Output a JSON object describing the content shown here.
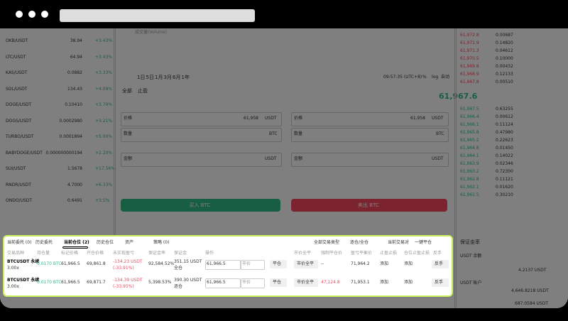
{
  "market_list": [
    {
      "pair": "OKB/USDT",
      "price": "38.94",
      "change": "+3.43%"
    },
    {
      "pair": "LTC/USDT",
      "price": "64.94",
      "change": "+3.43%"
    },
    {
      "pair": "KAS/USDT",
      "price": "0.0882",
      "change": "+3.33%"
    },
    {
      "pair": "SOL/USDT",
      "price": "134.43",
      "change": "+4.09%"
    },
    {
      "pair": "DOGE/USDT",
      "price": "0.10410",
      "change": "+3.79%"
    },
    {
      "pair": "DOGS/USDT",
      "price": "0.0002980",
      "change": "+3.21%"
    },
    {
      "pair": "TURBO/USDT",
      "price": "0.0001894",
      "change": "+5.00%"
    },
    {
      "pair": "BABYDOGE/USDT",
      "price": "0.000000000194",
      "change": "+2.20%"
    },
    {
      "pair": "SUI/USDT",
      "price": "1.5678",
      "change": "+17.56%"
    },
    {
      "pair": "RNDR/USDT",
      "price": "4.7000",
      "change": "+6.33%"
    },
    {
      "pair": "ONDO/USDT",
      "price": "0.6491",
      "change": "+3.5%"
    }
  ],
  "chart": {
    "volume_label": "成交量(Volume)",
    "ranges": [
      "1日",
      "5日",
      "1月",
      "3月",
      "6月",
      "1年"
    ],
    "time": "09:57:35 (UTC+8)",
    "scale": [
      "%",
      "log",
      "自动"
    ]
  },
  "order_form": {
    "tabs": [
      "全部",
      "止盈"
    ],
    "price_label": "价格",
    "price": "61,958",
    "quote": "USDT",
    "amount_label": "数量",
    "base": "BTC",
    "total_label": "金额",
    "buy": "买入 BTC",
    "sell": "卖出 BTC"
  },
  "order_book": {
    "asks": [
      [
        "61,972.8",
        "0.00687"
      ],
      [
        "61,971.9",
        "0.14820"
      ],
      [
        "61,971.3",
        "0.04612"
      ],
      [
        "61,970.5",
        "0.10000"
      ],
      [
        "61,969.8",
        "0.00432"
      ],
      [
        "61,968.9",
        "0.12133"
      ],
      [
        "61,967.8",
        "0.00510"
      ]
    ],
    "last_price": "61,967.6",
    "bids": [
      [
        "61,967.5",
        "0.63255"
      ],
      [
        "61,966.4",
        "0.00612"
      ],
      [
        "61,966.1",
        "0.11124"
      ],
      [
        "61,965.8",
        "0.47980"
      ],
      [
        "61,965.2",
        "0.22623"
      ],
      [
        "61,964.8",
        "0.01450"
      ],
      [
        "61,964.1",
        "0.14022"
      ],
      [
        "61,963.9",
        "0.02346"
      ],
      [
        "61,963.2",
        "0.72300"
      ],
      [
        "61,962.8",
        "0.11121"
      ],
      [
        "61,962.1",
        "0.01620"
      ],
      [
        "61,961.5",
        "0.30210"
      ]
    ]
  },
  "account": {
    "title": "保证金率",
    "usdt_label": "USDT 余额",
    "usdt_balance": "4.2137 USDT",
    "account_label": "USDT 账户",
    "equity": "4,646.8218 USDT",
    "available": "687.0584 USDT"
  },
  "positions_panel": {
    "tabs": [
      "当前委托 (0)",
      "历史委托",
      "当前仓位 (2)",
      "历史仓位",
      "资产",
      "策略 (0)"
    ],
    "filters": [
      "全部交易类型",
      "逐仓/全仓",
      "当前交易对",
      "一键平仓"
    ],
    "headers": [
      "交易品种",
      "持仓量",
      "标记价格",
      "开仓价格",
      "未实现盈亏",
      "保证金率",
      "保证金",
      "操作",
      "市价全平",
      "强制平仓价",
      "盈亏平衡价",
      "止盈止损",
      "仓位止盈止损",
      "反手"
    ],
    "rows": [
      [
        [
          "BTCUSDT 永续",
          "3.00x"
        ],
        [
          "0.0170 BTC"
        ],
        [
          "61,966.5"
        ],
        [
          "69,861.8"
        ],
        [
          "-134.23 USDT",
          "(-33.91%)"
        ],
        [
          "92,584.52%"
        ],
        [
          "351.15 USDT",
          "全仓"
        ],
        [
          "61,966.5"
        ],
        [
          "市价"
        ],
        [
          "平仓"
        ],
        [
          "市价全平"
        ],
        [
          "--"
        ],
        [
          "71,964.2"
        ],
        [
          "添加"
        ],
        [
          "添加"
        ],
        [
          "反手"
        ]
      ],
      [
        [
          "BTCUSDT 永续",
          "3.00x"
        ],
        [
          "0.0170 BTC"
        ],
        [
          "61,966.5"
        ],
        [
          "69,871.7"
        ],
        [
          "-134.39 USDT",
          "(-33.95%)"
        ],
        [
          "5,398.53%"
        ],
        [
          "390.30 USDT",
          "逐仓"
        ],
        [
          "61,966.5"
        ],
        [
          "市价"
        ],
        [
          "平仓"
        ],
        [
          "市价全平"
        ],
        [
          "47,124.8"
        ],
        [
          "71,953.1"
        ],
        [
          "添加"
        ],
        [
          "添加"
        ],
        [
          "反手"
        ]
      ]
    ]
  }
}
